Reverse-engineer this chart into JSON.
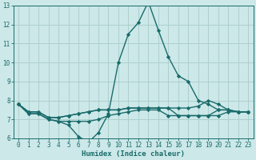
{
  "xlabel": "Humidex (Indice chaleur)",
  "background_color": "#cce8e8",
  "grid_color": "#aacccc",
  "line_color": "#1a6b6b",
  "x_values": [
    0,
    1,
    2,
    3,
    4,
    5,
    6,
    7,
    8,
    9,
    10,
    11,
    12,
    13,
    14,
    15,
    16,
    17,
    18,
    19,
    20,
    21,
    22,
    23
  ],
  "series": [
    [
      7.8,
      7.3,
      7.3,
      7.0,
      6.9,
      6.7,
      6.1,
      5.8,
      6.3,
      7.3,
      10.0,
      11.5,
      12.1,
      13.2,
      11.7,
      10.3,
      9.3,
      9.0,
      8.0,
      7.8,
      7.5,
      7.5,
      7.4,
      7.4
    ],
    [
      7.8,
      7.4,
      7.4,
      7.1,
      7.1,
      7.2,
      7.3,
      7.4,
      7.5,
      7.5,
      7.5,
      7.6,
      7.6,
      7.6,
      7.6,
      7.6,
      7.6,
      7.6,
      7.7,
      8.0,
      7.8,
      7.5,
      7.4,
      7.4
    ],
    [
      7.8,
      7.4,
      7.4,
      7.1,
      7.1,
      7.2,
      7.3,
      7.4,
      7.5,
      7.5,
      7.5,
      7.6,
      7.6,
      7.6,
      7.6,
      7.6,
      7.2,
      7.2,
      7.2,
      7.2,
      7.2,
      7.4,
      7.4,
      7.4
    ],
    [
      7.8,
      7.3,
      7.3,
      7.0,
      6.9,
      6.9,
      6.9,
      6.9,
      7.0,
      7.2,
      7.3,
      7.4,
      7.5,
      7.5,
      7.5,
      7.2,
      7.2,
      7.2,
      7.2,
      7.2,
      7.5,
      7.5,
      7.4,
      7.4
    ]
  ],
  "ylim": [
    6,
    13
  ],
  "xlim": [
    -0.5,
    23.5
  ],
  "yticks": [
    6,
    7,
    8,
    9,
    10,
    11,
    12,
    13
  ],
  "xticks": [
    0,
    1,
    2,
    3,
    4,
    5,
    6,
    7,
    8,
    9,
    10,
    11,
    12,
    13,
    14,
    15,
    16,
    17,
    18,
    19,
    20,
    21,
    22,
    23
  ],
  "marker": "D",
  "marker_size": 2.2,
  "line_width": 1.0,
  "tick_fontsize": 5.5,
  "xlabel_fontsize": 6.5
}
